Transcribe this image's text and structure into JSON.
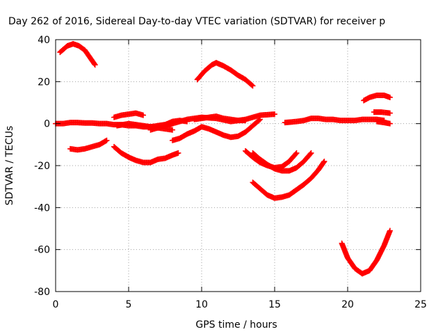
{
  "chart_data": {
    "type": "scatter",
    "title": "Day 262 of 2016, Sidereal Day-to-day VTEC variation (SDTVAR) for receiver p",
    "xlabel": "GPS time / hours",
    "ylabel": "SDTVAR / TECUs",
    "xlim": [
      0,
      25
    ],
    "ylim": [
      -80,
      40
    ],
    "xticks": [
      0,
      5,
      10,
      15,
      20,
      25
    ],
    "yticks": [
      -80,
      -60,
      -40,
      -20,
      0,
      20,
      40
    ],
    "xtick_labels": [
      "0",
      "5",
      "10",
      "15",
      "20",
      "25"
    ],
    "ytick_labels": [
      "-80",
      "-60",
      "-40",
      "-20",
      "0",
      "20",
      "40"
    ],
    "grid": true,
    "marker_color": "#ff0000",
    "marker": "plus",
    "series": [
      {
        "x": [
          0.3,
          0.8,
          1.2,
          1.6,
          2.0,
          2.3,
          2.7
        ],
        "y": [
          34,
          37,
          38,
          37,
          35,
          32,
          28
        ]
      },
      {
        "x": [
          0,
          0.5,
          1.0,
          1.5,
          2.0,
          2.5,
          3.0,
          3.5,
          4.0,
          4.5,
          5.0,
          5.5,
          6.0,
          6.5,
          7.0,
          7.5,
          8.0
        ],
        "y": [
          0,
          0,
          0.5,
          0.5,
          0.3,
          0.3,
          0,
          0,
          -0.5,
          -0.5,
          -1,
          -1,
          -1.5,
          -1.5,
          -1,
          -0.5,
          0
        ]
      },
      {
        "x": [
          1.0,
          1.5,
          2.0,
          2.5,
          3.0,
          3.5
        ],
        "y": [
          -12,
          -12.5,
          -12,
          -11,
          -10,
          -8
        ]
      },
      {
        "x": [
          4.0,
          4.5,
          5.0,
          5.5,
          6.0,
          6.5,
          7.0,
          7.5,
          8.0,
          8.4
        ],
        "y": [
          -11,
          -14,
          -16,
          -17.5,
          -18.5,
          -18.5,
          -17,
          -16.5,
          -15,
          -14
        ]
      },
      {
        "x": [
          4.0,
          4.5,
          5.0,
          5.5,
          6.0
        ],
        "y": [
          3,
          4,
          4.5,
          5,
          4
        ]
      },
      {
        "x": [
          4.2,
          5.0,
          6.0,
          7.0,
          8.0,
          9.0,
          10.0,
          11.0,
          12.0,
          13.0,
          14.0,
          15.0
        ],
        "y": [
          -1,
          0,
          -1,
          -2,
          0,
          2,
          3,
          2.5,
          1,
          2,
          4,
          4.5
        ]
      },
      {
        "x": [
          6.5,
          7.0,
          7.5,
          8.0
        ],
        "y": [
          -3,
          -2,
          -2.5,
          -3
        ]
      },
      {
        "x": [
          7.0,
          7.5,
          8.0,
          8.5,
          9.0
        ],
        "y": [
          -1,
          -0.5,
          1,
          1.5,
          1
        ]
      },
      {
        "x": [
          8.0,
          8.5,
          9.0,
          9.5,
          10.0,
          10.5,
          11.0,
          11.5,
          12.0,
          12.5,
          13.0,
          13.5,
          14.0
        ],
        "y": [
          -8,
          -7,
          -5,
          -3.5,
          -1.5,
          -2.5,
          -4,
          -5.5,
          -6.5,
          -6,
          -4,
          -1,
          2
        ]
      },
      {
        "x": [
          9.7,
          10.2,
          10.7,
          11.0,
          11.5,
          12.0,
          12.5,
          13.0,
          13.5
        ],
        "y": [
          21,
          25,
          28,
          29,
          27.5,
          25.5,
          23,
          21,
          18
        ]
      },
      {
        "x": [
          9.5,
          10.0,
          10.5,
          11.0,
          11.5,
          12.0,
          12.5,
          13.0
        ],
        "y": [
          2,
          2.5,
          3,
          3.5,
          2.5,
          2,
          1.5,
          1.5
        ]
      },
      {
        "x": [
          13.0,
          13.5,
          14.0,
          14.5,
          15.0,
          15.5,
          16.0,
          16.5
        ],
        "y": [
          -13,
          -16,
          -18.5,
          -20,
          -21,
          -20.5,
          -18,
          -14
        ]
      },
      {
        "x": [
          13.5,
          14.0,
          14.5,
          15.0,
          15.5,
          16.0,
          16.5,
          17.0,
          17.5
        ],
        "y": [
          -14,
          -17,
          -19.5,
          -21.5,
          -22.5,
          -22.5,
          -21,
          -18,
          -14
        ]
      },
      {
        "x": [
          13.5,
          14.0,
          14.5,
          15.0,
          15.5,
          16.0,
          16.5,
          17.0,
          17.5,
          18.0,
          18.4
        ],
        "y": [
          -28,
          -31,
          -34,
          -35.5,
          -35,
          -34,
          -31.5,
          -29,
          -26,
          -22,
          -18
        ]
      },
      {
        "x": [
          15.7,
          16.5,
          17.0,
          17.5,
          18.0,
          18.5,
          19.0,
          19.5,
          20.0,
          20.5,
          21.0,
          21.5,
          22.0,
          22.5
        ],
        "y": [
          0.5,
          1,
          1.5,
          2.5,
          2.5,
          2,
          2,
          1.5,
          1.5,
          1.5,
          2,
          2,
          2,
          1.5
        ]
      },
      {
        "x": [
          19.6,
          20.0,
          20.5,
          21.0,
          21.5,
          22.0,
          22.5,
          22.9
        ],
        "y": [
          -57,
          -64,
          -69,
          -71.5,
          -70,
          -65,
          -58,
          -51
        ]
      },
      {
        "x": [
          21.1,
          21.5,
          22.0,
          22.5,
          22.9
        ],
        "y": [
          11,
          12.5,
          13.5,
          13.5,
          12.5
        ]
      },
      {
        "x": [
          21.8,
          22.3,
          22.9
        ],
        "y": [
          5.5,
          5.5,
          5
        ]
      },
      {
        "x": [
          22.0,
          22.5,
          22.9
        ],
        "y": [
          1,
          0.5,
          0
        ]
      }
    ]
  }
}
